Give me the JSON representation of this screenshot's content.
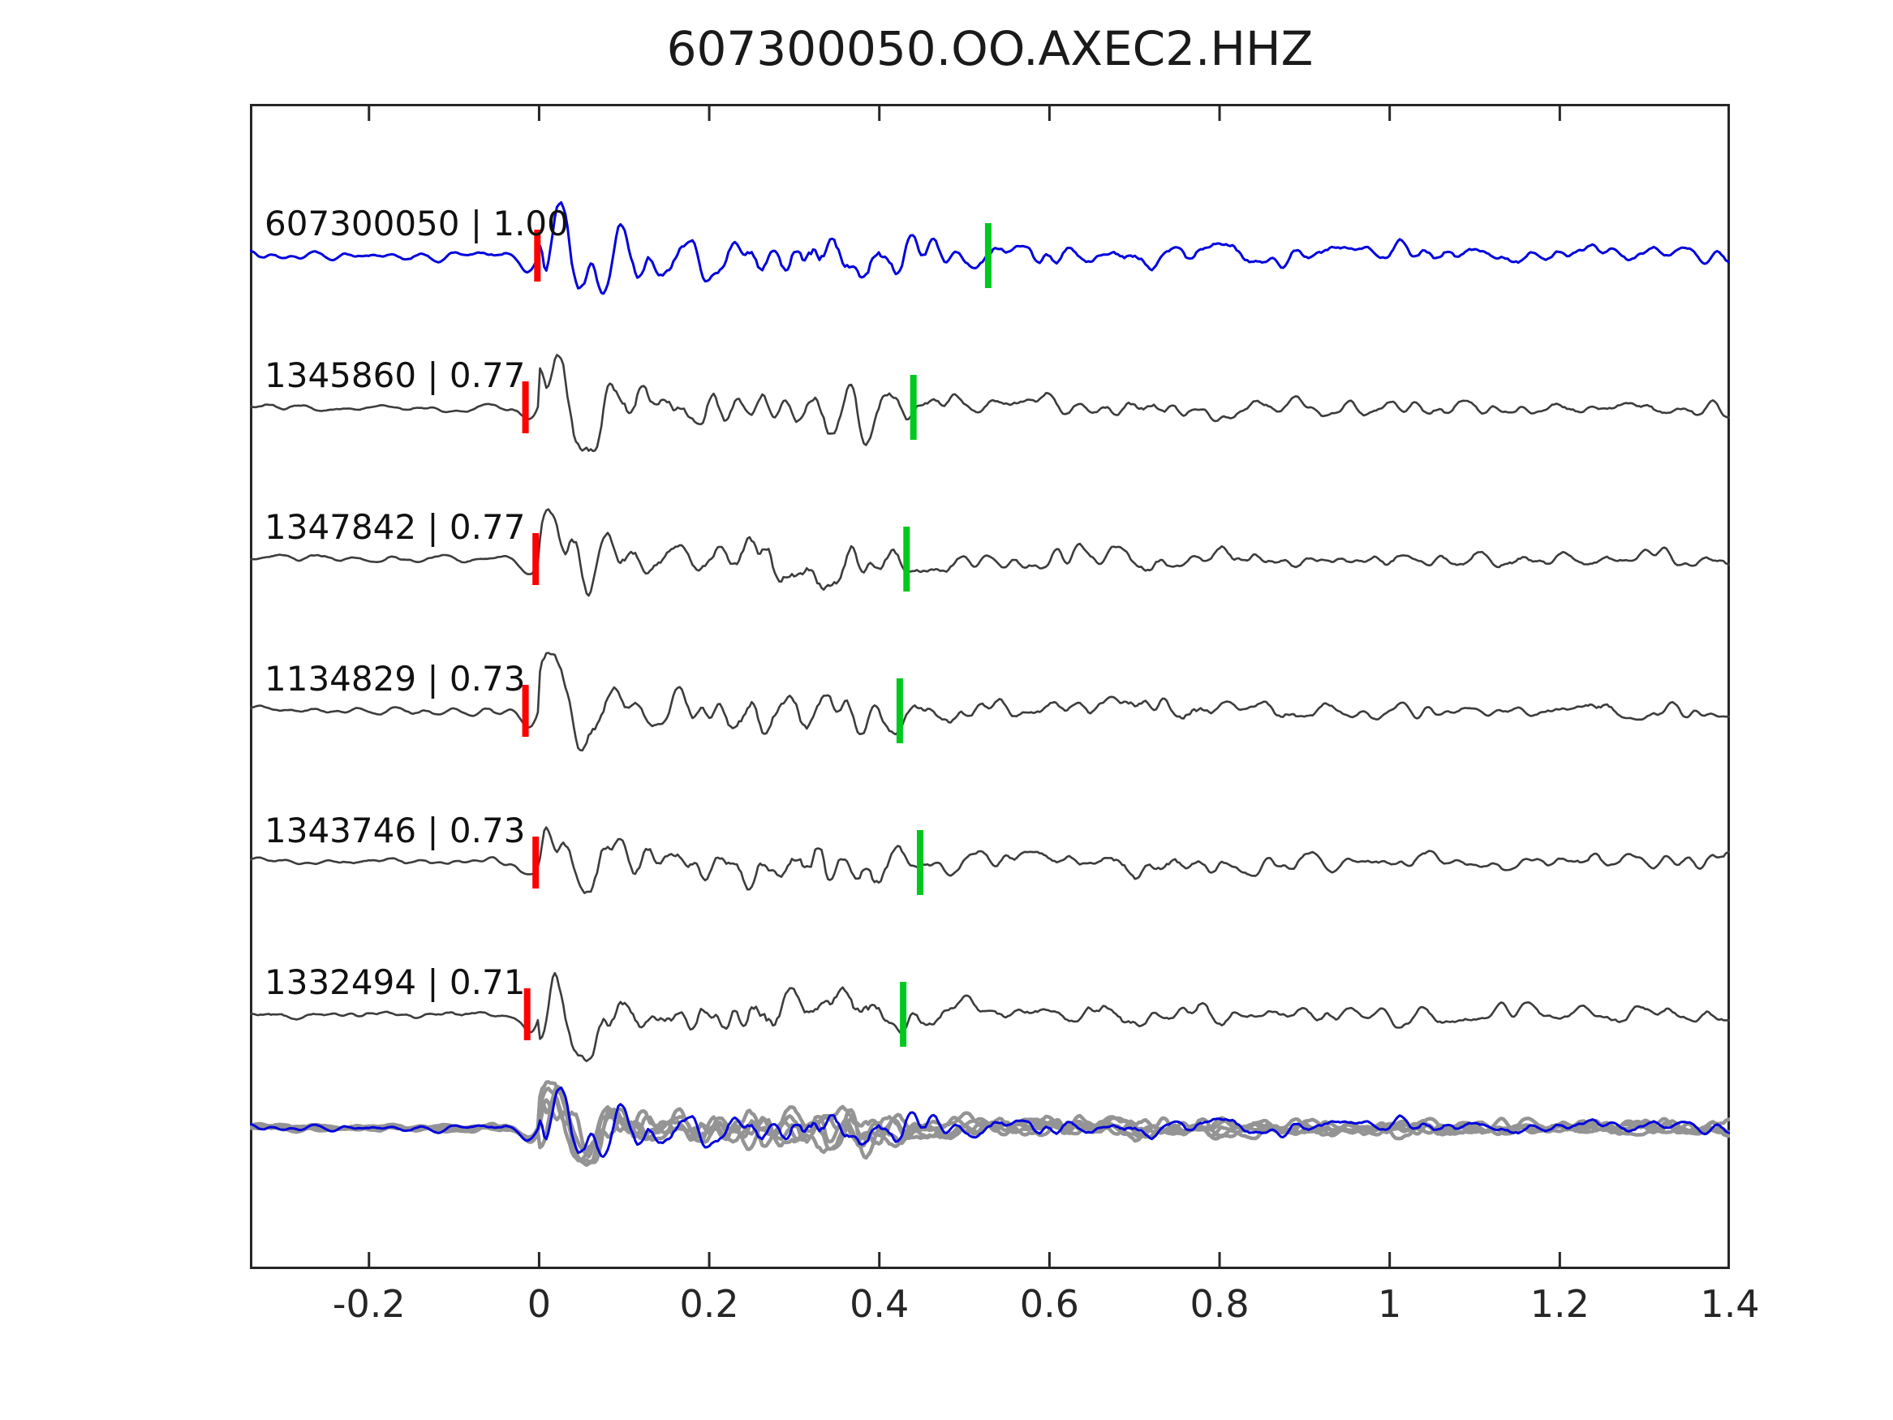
{
  "title": "607300050.OO.AXEC2.HHZ",
  "colors": {
    "template_blue": "#0000dd",
    "detection_gray": "#3c3c3c",
    "overlay_gray": "#949494",
    "pick_red": "#ff0000",
    "pick_green": "#00c81e",
    "axis": "#262626",
    "background": "#ffffff"
  },
  "chart_data": {
    "type": "line",
    "title": "607300050.OO.AXEC2.HHZ",
    "description": "Matched-filter detection plot: template seismogram (blue, top) and five detected event waveforms (dark gray), each with a red pick marker near time 0 and a green pick marker near 0.43-0.53 s; bottom row overlays all detection waveforms (gray) with the template (blue). Label format is event_id | correlation.",
    "xlim": [
      -0.34,
      1.4
    ],
    "x_ticks": [
      -0.2,
      0,
      0.2,
      0.4,
      0.6,
      0.8,
      1,
      1.2,
      1.4
    ],
    "x_tick_labels": [
      "-0.2",
      "0",
      "0.2",
      "0.4",
      "0.6",
      "0.8",
      "1",
      "1.2",
      "1.4"
    ],
    "grid": false,
    "legend": null,
    "traces": [
      {
        "label": "607300050 | 1.00",
        "event_id": "607300050",
        "correlation": 1.0,
        "role": "template",
        "red_pick_x": -0.002,
        "green_pick_x": 0.528
      },
      {
        "label": "1345860 | 0.77",
        "event_id": "1345860",
        "correlation": 0.77,
        "role": "detection",
        "red_pick_x": -0.016,
        "green_pick_x": 0.44
      },
      {
        "label": "1347842 | 0.77",
        "event_id": "1347842",
        "correlation": 0.77,
        "role": "detection",
        "red_pick_x": -0.004,
        "green_pick_x": 0.432
      },
      {
        "label": "1134829 | 0.73",
        "event_id": "1134829",
        "correlation": 0.73,
        "role": "detection",
        "red_pick_x": -0.016,
        "green_pick_x": 0.424
      },
      {
        "label": "1343746 | 0.73",
        "event_id": "1343746",
        "correlation": 0.73,
        "role": "detection",
        "red_pick_x": -0.004,
        "green_pick_x": 0.448
      },
      {
        "label": "1332494 | 0.71",
        "event_id": "1332494",
        "correlation": 0.71,
        "role": "detection",
        "red_pick_x": -0.014,
        "green_pick_x": 0.428
      }
    ],
    "overlay_row": {
      "gray_trace_count": 5,
      "has_blue_template": true,
      "has_pick_markers": false,
      "has_label": false
    }
  }
}
